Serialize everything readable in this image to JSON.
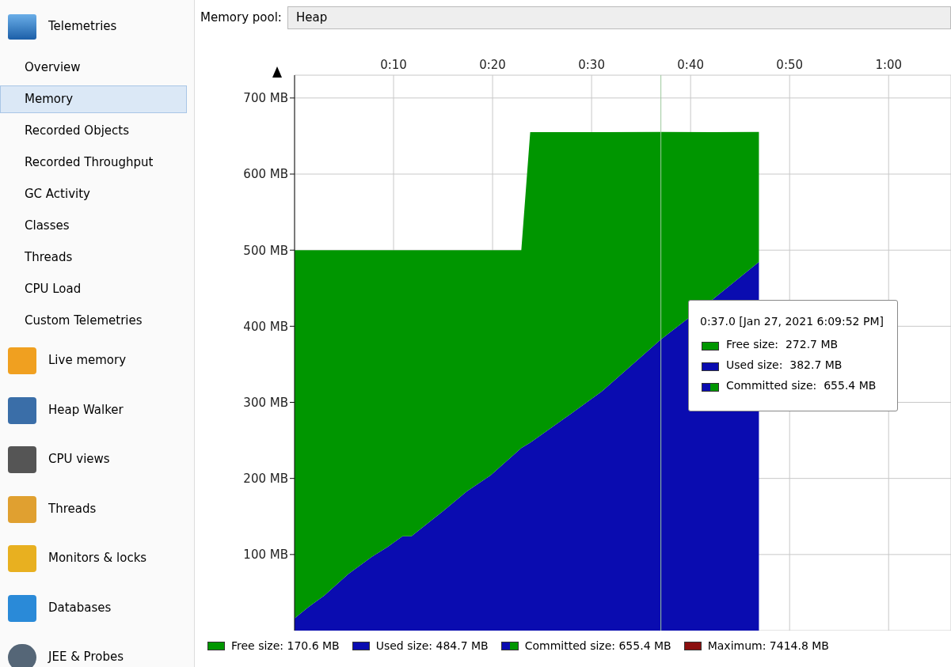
{
  "chart_data": {
    "type": "area",
    "stacked": true,
    "x": [
      0,
      1.4,
      3,
      5.4,
      7.8,
      9.4,
      10.9,
      11.8,
      15,
      17.4,
      19.8,
      22.9,
      23.8,
      27.8,
      31,
      37,
      42.2,
      46.9
    ],
    "series": [
      {
        "name": "Used size: 484.7 MB",
        "color": "#0a0cb0",
        "values": [
          16,
          31,
          46,
          74,
          97,
          110,
          124,
          124,
          157,
          183,
          204,
          240,
          247,
          284,
          314,
          382.7,
          435,
          484.7
        ]
      },
      {
        "name": "Free size: 170.6 MB",
        "color": "#009600",
        "values": [
          484,
          469,
          454,
          426,
          403,
          390,
          376,
          376,
          343,
          317,
          296,
          260,
          408,
          371,
          341,
          272.7,
          220,
          170.6
        ]
      }
    ],
    "xlim": [
      0,
      66.3
    ],
    "xticks": [
      {
        "value": 10,
        "label": "0:10"
      },
      {
        "value": 20,
        "label": "0:20"
      },
      {
        "value": 30,
        "label": "0:30"
      },
      {
        "value": 40,
        "label": "0:40"
      },
      {
        "value": 50,
        "label": "0:50"
      },
      {
        "value": 60,
        "label": "1:00"
      }
    ],
    "ylim": [
      0,
      730
    ],
    "yticks": [
      {
        "value": 100,
        "label": "100 MB"
      },
      {
        "value": 200,
        "label": "200 MB"
      },
      {
        "value": 300,
        "label": "300 MB"
      },
      {
        "value": 400,
        "label": "400 MB"
      },
      {
        "value": 500,
        "label": "500 MB"
      },
      {
        "value": 600,
        "label": "600 MB"
      },
      {
        "value": 700,
        "label": "700 MB"
      }
    ],
    "ref_lines": [
      {
        "axis": "x",
        "value": 37,
        "color": "#9cc89c"
      }
    ],
    "grid": true,
    "legend": "bottom",
    "annotations": [
      "Telemetries",
      "Overview",
      "Memory",
      "Recorded Objects",
      "Recorded Throughput",
      "GC Activity",
      "Classes",
      "Threads",
      "CPU Load",
      "Custom Telemetries",
      "Live memory",
      "Heap Walker",
      "CPU views",
      "Threads",
      "Monitors & locks",
      "Databases",
      "JEE & Probes",
      "Memory pool:",
      "Heap",
      "0:37.0 [Jan 27, 2021 6:09:52 PM]",
      "Free size:  272.7 MB",
      "Used size:  382.7 MB",
      "Committed size:  655.4 MB",
      "Committed size: 655.4 MB",
      "Maximum: 7414.8 MB"
    ]
  }
}
